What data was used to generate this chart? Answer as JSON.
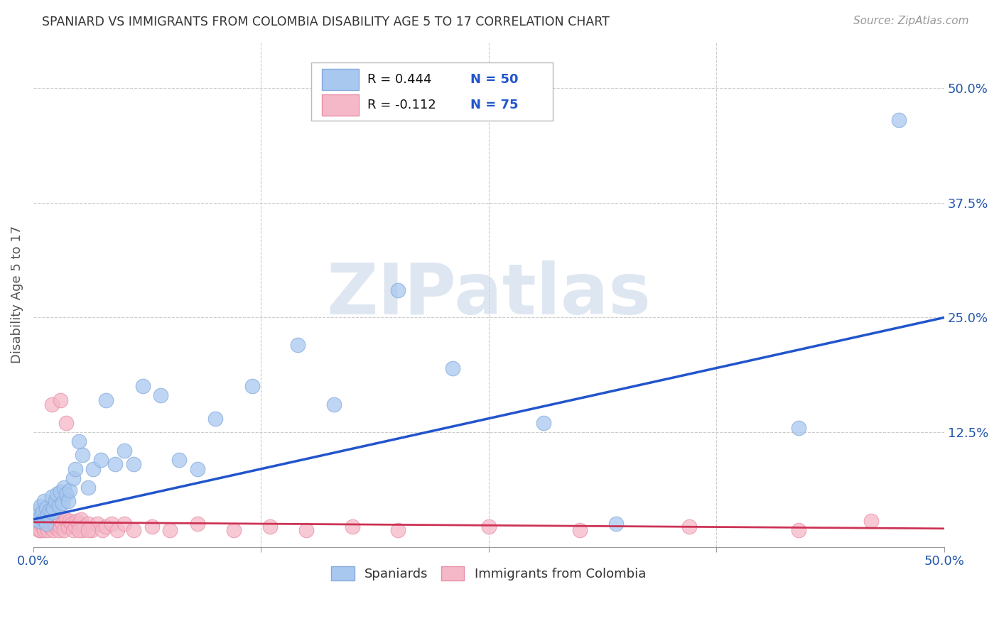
{
  "title": "SPANIARD VS IMMIGRANTS FROM COLOMBIA DISABILITY AGE 5 TO 17 CORRELATION CHART",
  "source": "Source: ZipAtlas.com",
  "ylabel": "Disability Age 5 to 17",
  "xlim": [
    0.0,
    0.5
  ],
  "ylim": [
    0.0,
    0.55
  ],
  "blue_color": "#a8c8f0",
  "blue_edge_color": "#85aadc",
  "pink_color": "#f5b8c8",
  "pink_edge_color": "#e890a8",
  "blue_line_color": "#2255cc",
  "pink_line_color": "#cc3355",
  "text_color": "#2255aa",
  "watermark_color": "#c8d8e8",
  "legend_text_color": "#1144bb",
  "legend_R_color": "#111111",
  "legend_N_color": "#2255cc",
  "spaniards_x": [
    0.001,
    0.002,
    0.003,
    0.003,
    0.004,
    0.004,
    0.005,
    0.006,
    0.006,
    0.007,
    0.007,
    0.008,
    0.009,
    0.01,
    0.01,
    0.011,
    0.012,
    0.013,
    0.014,
    0.015,
    0.016,
    0.017,
    0.018,
    0.019,
    0.02,
    0.022,
    0.023,
    0.025,
    0.027,
    0.03,
    0.033,
    0.037,
    0.04,
    0.045,
    0.05,
    0.055,
    0.06,
    0.07,
    0.08,
    0.09,
    0.1,
    0.12,
    0.145,
    0.165,
    0.2,
    0.23,
    0.28,
    0.32,
    0.42,
    0.475
  ],
  "spaniards_y": [
    0.03,
    0.035,
    0.028,
    0.04,
    0.032,
    0.045,
    0.038,
    0.03,
    0.05,
    0.025,
    0.042,
    0.035,
    0.04,
    0.038,
    0.055,
    0.042,
    0.05,
    0.058,
    0.045,
    0.06,
    0.048,
    0.065,
    0.058,
    0.05,
    0.062,
    0.075,
    0.085,
    0.115,
    0.1,
    0.065,
    0.085,
    0.095,
    0.16,
    0.09,
    0.105,
    0.09,
    0.175,
    0.165,
    0.095,
    0.085,
    0.14,
    0.175,
    0.22,
    0.155,
    0.28,
    0.195,
    0.135,
    0.025,
    0.13,
    0.465
  ],
  "colombia_x": [
    0.001,
    0.001,
    0.002,
    0.002,
    0.002,
    0.003,
    0.003,
    0.003,
    0.004,
    0.004,
    0.004,
    0.005,
    0.005,
    0.005,
    0.006,
    0.006,
    0.006,
    0.007,
    0.007,
    0.007,
    0.008,
    0.008,
    0.008,
    0.009,
    0.009,
    0.01,
    0.01,
    0.011,
    0.011,
    0.012,
    0.012,
    0.013,
    0.014,
    0.015,
    0.015,
    0.016,
    0.017,
    0.018,
    0.019,
    0.02,
    0.021,
    0.022,
    0.023,
    0.024,
    0.025,
    0.026,
    0.027,
    0.028,
    0.03,
    0.032,
    0.035,
    0.038,
    0.04,
    0.043,
    0.046,
    0.05,
    0.055,
    0.065,
    0.075,
    0.09,
    0.11,
    0.13,
    0.15,
    0.175,
    0.2,
    0.25,
    0.3,
    0.36,
    0.42,
    0.46,
    0.01,
    0.015,
    0.018,
    0.025,
    0.03
  ],
  "colombia_y": [
    0.025,
    0.03,
    0.028,
    0.032,
    0.02,
    0.025,
    0.035,
    0.018,
    0.025,
    0.03,
    0.018,
    0.028,
    0.032,
    0.022,
    0.025,
    0.03,
    0.018,
    0.028,
    0.022,
    0.025,
    0.03,
    0.018,
    0.025,
    0.028,
    0.022,
    0.025,
    0.03,
    0.018,
    0.028,
    0.022,
    0.025,
    0.03,
    0.018,
    0.028,
    0.022,
    0.025,
    0.018,
    0.03,
    0.022,
    0.028,
    0.025,
    0.018,
    0.022,
    0.028,
    0.025,
    0.03,
    0.018,
    0.022,
    0.025,
    0.018,
    0.025,
    0.018,
    0.022,
    0.025,
    0.018,
    0.025,
    0.018,
    0.022,
    0.018,
    0.025,
    0.018,
    0.022,
    0.018,
    0.022,
    0.018,
    0.022,
    0.018,
    0.022,
    0.018,
    0.028,
    0.155,
    0.16,
    0.135,
    0.018,
    0.018
  ],
  "blue_line_x": [
    0.0,
    0.5
  ],
  "blue_line_y": [
    0.03,
    0.25
  ],
  "pink_line_x": [
    0.0,
    0.5
  ],
  "pink_line_y": [
    0.027,
    0.02
  ]
}
